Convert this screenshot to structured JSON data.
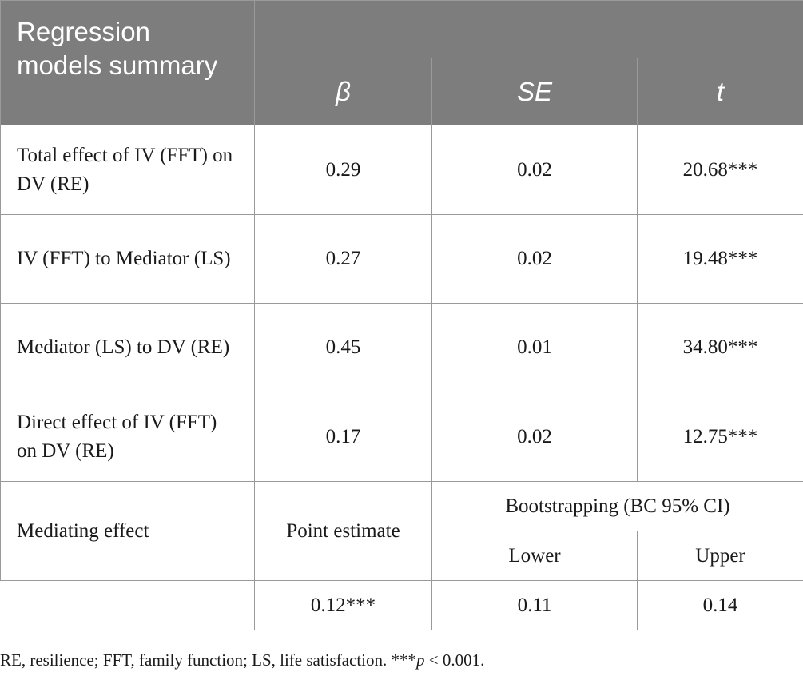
{
  "header": {
    "title": "Regression models summary",
    "columns": [
      "β",
      "SE",
      "t"
    ]
  },
  "rows": [
    {
      "label": "Total effect of IV (FFT) on DV (RE)",
      "beta": "0.29",
      "se": "0.02",
      "t": "20.68***"
    },
    {
      "label": "IV (FFT) to Mediator (LS)",
      "beta": "0.27",
      "se": "0.02",
      "t": "19.48***"
    },
    {
      "label": "Mediator (LS) to DV (RE)",
      "beta": "0.45",
      "se": "0.01",
      "t": "34.80***"
    },
    {
      "label": "Direct effect of IV (FFT) on DV (RE)",
      "beta": "0.17",
      "se": "0.02",
      "t": "12.75***"
    }
  ],
  "mediating": {
    "label": "Mediating effect",
    "point_estimate_label": "Point estimate",
    "bootstrap_label": "Bootstrapping (BC 95% CI)",
    "lower_label": "Lower",
    "upper_label": "Upper",
    "point_estimate": "0.12***",
    "lower": "0.11",
    "upper": "0.14"
  },
  "footnote": {
    "text": "RE, resilience; FFT, family function; LS, life satisfaction. ***",
    "p_symbol": "p",
    "p_rest": " < 0.001."
  }
}
